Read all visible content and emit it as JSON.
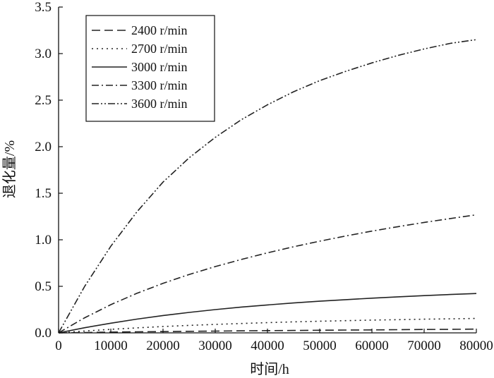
{
  "chart_data": {
    "type": "line",
    "title": "",
    "xlabel": "时间/h",
    "ylabel": "退化量/%",
    "xlim": [
      0,
      80000
    ],
    "ylim": [
      0,
      3.5
    ],
    "xticks": [
      "0",
      "10000",
      "20000",
      "30000",
      "40000",
      "50000",
      "60000",
      "70000",
      "80000"
    ],
    "yticks": [
      "0.0",
      "0.5",
      "1.0",
      "1.5",
      "2.0",
      "2.5",
      "3.0",
      "3.5"
    ],
    "grid": false,
    "legend_position": "top-left",
    "x": [
      0,
      5000,
      10000,
      15000,
      20000,
      25000,
      30000,
      35000,
      40000,
      45000,
      50000,
      55000,
      60000,
      65000,
      70000,
      75000,
      80000
    ],
    "series": [
      {
        "name": "2400 r/min",
        "line_style": "dashed",
        "values": [
          0,
          0.004,
          0.008,
          0.011,
          0.014,
          0.017,
          0.019,
          0.022,
          0.024,
          0.026,
          0.028,
          0.03,
          0.032,
          0.034,
          0.036,
          0.038,
          0.04
        ]
      },
      {
        "name": "2700 r/min",
        "line_style": "dotted",
        "values": [
          0,
          0.02,
          0.038,
          0.054,
          0.068,
          0.08,
          0.091,
          0.101,
          0.11,
          0.118,
          0.125,
          0.131,
          0.137,
          0.142,
          0.147,
          0.151,
          0.155
        ]
      },
      {
        "name": "3000 r/min",
        "line_style": "solid",
        "values": [
          0,
          0.055,
          0.104,
          0.148,
          0.186,
          0.22,
          0.25,
          0.277,
          0.3,
          0.321,
          0.34,
          0.357,
          0.373,
          0.387,
          0.4,
          0.412,
          0.423
        ]
      },
      {
        "name": "3300 r/min",
        "line_style": "dashdot",
        "values": [
          0,
          0.162,
          0.303,
          0.425,
          0.532,
          0.627,
          0.712,
          0.789,
          0.86,
          0.925,
          0.985,
          1.041,
          1.093,
          1.141,
          1.186,
          1.228,
          1.268
        ]
      },
      {
        "name": "3600 r/min",
        "line_style": "dashdotdot",
        "values": [
          0,
          0.5,
          0.93,
          1.3,
          1.62,
          1.88,
          2.1,
          2.29,
          2.45,
          2.59,
          2.71,
          2.81,
          2.9,
          2.98,
          3.05,
          3.11,
          3.15
        ]
      }
    ]
  }
}
